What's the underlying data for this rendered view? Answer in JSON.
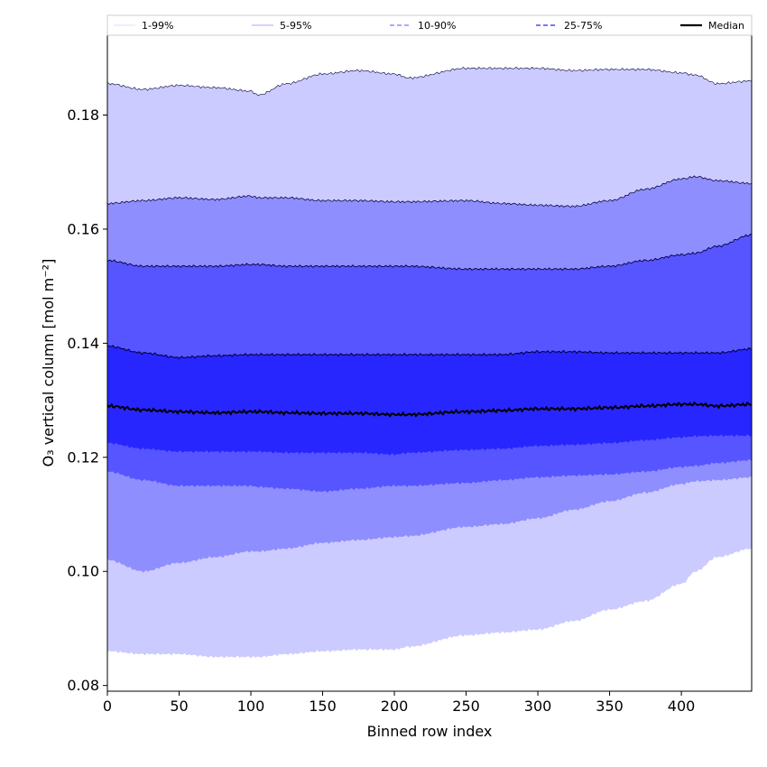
{
  "chart_data": {
    "type": "area",
    "xlabel": "Binned row index",
    "ylabel": "O₃ vertical column [mol m⁻²]",
    "xlim": [
      0,
      449
    ],
    "ylim": [
      0.079,
      0.194
    ],
    "xticks": [
      0,
      50,
      100,
      150,
      200,
      250,
      300,
      350,
      400
    ],
    "yticks": [
      0.08,
      0.1,
      0.12,
      0.14,
      0.16,
      0.18
    ],
    "ytick_labels": [
      "0.08",
      "0.10",
      "0.12",
      "0.14",
      "0.16",
      "0.18"
    ],
    "legend": [
      "1-99%",
      "5-95%",
      "10-90%",
      "25-75%",
      "Median"
    ],
    "legend_position": "top",
    "x_knots": [
      0,
      25,
      50,
      75,
      100,
      105,
      125,
      150,
      175,
      200,
      210,
      250,
      275,
      300,
      325,
      350,
      375,
      400,
      410,
      425,
      449
    ],
    "bands": [
      {
        "name": "1-99%",
        "color": "#cccbff",
        "upper": [
          0.1855,
          0.1845,
          0.1852,
          0.1848,
          0.1842,
          0.1835,
          0.1855,
          0.1872,
          0.1878,
          0.1872,
          0.1865,
          0.1882,
          0.1882,
          0.1882,
          0.1878,
          0.188,
          0.188,
          0.1874,
          0.187,
          0.1855,
          0.186
        ],
        "lower": [
          0.086,
          0.0855,
          0.0855,
          0.085,
          0.085,
          0.085,
          0.0855,
          0.086,
          0.0863,
          0.0863,
          0.0868,
          0.0888,
          0.0893,
          0.0898,
          0.0913,
          0.0933,
          0.0948,
          0.0978,
          0.1,
          0.1025,
          0.104
        ]
      },
      {
        "name": "5-95%",
        "color": "#8f8eff",
        "upper": [
          0.1645,
          0.165,
          0.1655,
          0.1652,
          0.1658,
          0.1655,
          0.1655,
          0.165,
          0.165,
          0.1648,
          0.1648,
          0.165,
          0.1645,
          0.1642,
          0.164,
          0.165,
          0.167,
          0.1688,
          0.1692,
          0.1685,
          0.168
        ],
        "lower": [
          0.102,
          0.1,
          0.1015,
          0.1025,
          0.1035,
          0.1035,
          0.104,
          0.105,
          0.1055,
          0.106,
          0.1062,
          0.1078,
          0.1083,
          0.1093,
          0.1108,
          0.1123,
          0.1138,
          0.1153,
          0.1158,
          0.116,
          0.1165
        ]
      },
      {
        "name": "10-90%",
        "color": "#5655ff",
        "upper": [
          0.1545,
          0.1535,
          0.1535,
          0.1535,
          0.1538,
          0.1538,
          0.1535,
          0.1535,
          0.1535,
          0.1535,
          0.1535,
          0.153,
          0.153,
          0.153,
          0.153,
          0.1535,
          0.1545,
          0.1555,
          0.1558,
          0.157,
          0.159
        ],
        "lower": [
          0.1175,
          0.116,
          0.115,
          0.115,
          0.115,
          0.1148,
          0.1145,
          0.114,
          0.1145,
          0.115,
          0.115,
          0.1155,
          0.116,
          0.1165,
          0.1168,
          0.117,
          0.1175,
          0.1183,
          0.1185,
          0.119,
          0.1195
        ]
      },
      {
        "name": "25-75%",
        "color": "#2726ff",
        "upper": [
          0.1395,
          0.1383,
          0.1375,
          0.1378,
          0.138,
          0.138,
          0.138,
          0.138,
          0.138,
          0.138,
          0.138,
          0.138,
          0.138,
          0.1385,
          0.1385,
          0.1383,
          0.1383,
          0.1383,
          0.1383,
          0.1383,
          0.139
        ],
        "lower": [
          0.1225,
          0.1215,
          0.121,
          0.121,
          0.121,
          0.121,
          0.1208,
          0.1208,
          0.1208,
          0.1205,
          0.1208,
          0.1213,
          0.1215,
          0.122,
          0.1222,
          0.1225,
          0.123,
          0.1235,
          0.1237,
          0.1238,
          0.1238
        ]
      }
    ],
    "median": {
      "name": "Median",
      "color": "#000000",
      "values": [
        0.129,
        0.1283,
        0.128,
        0.1278,
        0.128,
        0.128,
        0.1278,
        0.1277,
        0.1277,
        0.1275,
        0.1275,
        0.128,
        0.1282,
        0.1285,
        0.1285,
        0.1287,
        0.129,
        0.1293,
        0.1293,
        0.129,
        0.1293
      ]
    }
  }
}
